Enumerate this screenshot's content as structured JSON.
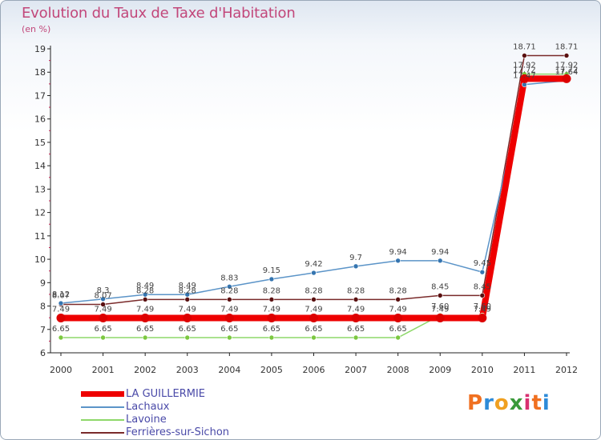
{
  "header": {
    "title": "Evolution du Taux de Taxe d'Habitation",
    "unit": "(en %)"
  },
  "brand": {
    "letters": [
      "P",
      "r",
      "o",
      "x",
      "i",
      "t",
      "i"
    ],
    "colors": [
      "#f07020",
      "#2e8bd8",
      "#f0a020",
      "#3a9a3a",
      "#d83070",
      "#f07020",
      "#2e8bd8"
    ]
  },
  "chart_data": {
    "type": "line",
    "title": "Evolution du Taux de Taxe d'Habitation",
    "ylabel": "(en %)",
    "xlabel": "",
    "ylim": [
      6,
      19
    ],
    "yticks": [
      6,
      7,
      8,
      9,
      10,
      11,
      12,
      13,
      14,
      15,
      16,
      17,
      18,
      19
    ],
    "x": [
      "2000",
      "2001",
      "2002",
      "2003",
      "2004",
      "2005",
      "2006",
      "2007",
      "2008",
      "2009",
      "2010",
      "2011",
      "2012"
    ],
    "grid": false,
    "legend_position": "bottom-left",
    "series": [
      {
        "name": "Ferrières-sur-Sichon",
        "color": "#7a2a2a",
        "marker": "#5a1010",
        "width": 1.5,
        "values": [
          8.07,
          8.07,
          8.28,
          8.28,
          8.28,
          8.28,
          8.28,
          8.28,
          8.28,
          8.45,
          8.45,
          18.71,
          18.71
        ],
        "labels": [
          "8.07",
          "8.07",
          "8.28",
          "8.28",
          "8.28",
          "8.28",
          "8.28",
          "8.28",
          "8.28",
          "8.45",
          "8.45",
          "18.71",
          "18.71"
        ]
      },
      {
        "name": "Lachaux",
        "color": "#5b94c8",
        "marker": "#3575b0",
        "width": 1.5,
        "values": [
          8.12,
          8.3,
          8.49,
          8.49,
          8.83,
          9.15,
          9.42,
          9.7,
          9.94,
          9.94,
          9.45,
          17.47,
          17.64
        ],
        "labels": [
          "8.12",
          "8.3",
          "8.49",
          "8.49",
          "8.83",
          "9.15",
          "9.42",
          "9.7",
          "9.94",
          "9.94",
          "9.45",
          "17.47",
          "17.64"
        ]
      },
      {
        "name": "Lavoine",
        "color": "#8ed86a",
        "marker": "#7cc840",
        "width": 1.5,
        "values": [
          6.65,
          6.65,
          6.65,
          6.65,
          6.65,
          6.65,
          6.65,
          6.65,
          6.65,
          7.6,
          7.6,
          17.92,
          17.92
        ],
        "labels": [
          "6.65",
          "6.65",
          "6.65",
          "6.65",
          "6.65",
          "6.65",
          "6.65",
          "6.65",
          "6.65",
          "7.60",
          "7.60",
          "17.92",
          "17.92"
        ]
      },
      {
        "name": "LA GUILLERMIE",
        "color": "#ee0000",
        "marker": "#dd0000",
        "width": 8,
        "values": [
          7.49,
          7.49,
          7.49,
          7.49,
          7.49,
          7.49,
          7.49,
          7.49,
          7.49,
          7.49,
          7.49,
          17.72,
          17.72
        ],
        "labels": [
          "7.49",
          "7.49",
          "7.49",
          "7.49",
          "7.49",
          "7.49",
          "7.49",
          "7.49",
          "7.49",
          "7.49",
          "7.49",
          "17.72",
          "17.72"
        ]
      }
    ],
    "legend": [
      {
        "name": "LA GUILLERMIE",
        "color": "#ee0000",
        "width": 8
      },
      {
        "name": "Lachaux",
        "color": "#5b94c8",
        "width": 1.5
      },
      {
        "name": "Lavoine",
        "color": "#8ed86a",
        "width": 1.5
      },
      {
        "name": "Ferrières-sur-Sichon",
        "color": "#7a2a2a",
        "width": 1.5
      }
    ]
  }
}
